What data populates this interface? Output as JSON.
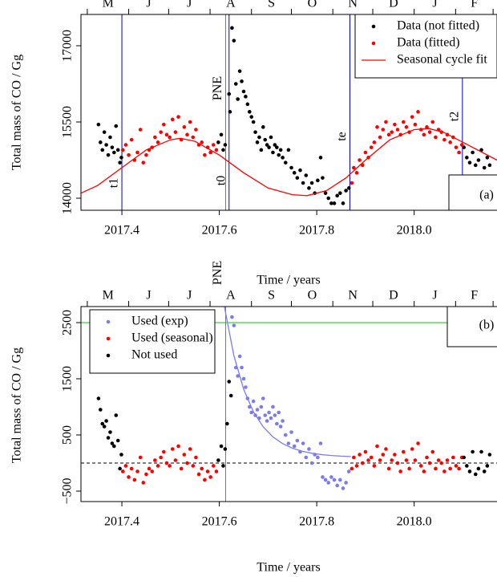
{
  "chart_data": [
    {
      "type": "scatter",
      "panel_label": "(a)",
      "xlabel": "Time / years",
      "ylabel": "Total mass of  CO  / Gg",
      "xlim": [
        2017.316,
        2018.17
      ],
      "ylim": [
        13763,
        17616
      ],
      "xticks": [
        2017.4,
        2017.6,
        2017.8,
        {
          "value": 2018,
          "label": "2018.0"
        }
      ],
      "yticks": [
        14000,
        15500,
        17000
      ],
      "month_labels": [
        "M",
        "J",
        "J",
        "A",
        "S",
        "O",
        "N",
        "D",
        "J",
        "F"
      ],
      "month_ticks": [
        2017.329,
        2017.414,
        2017.496,
        2017.581,
        2017.666,
        2017.748,
        2017.833,
        2017.915,
        2018.0,
        2018.085,
        2018.162
      ],
      "legend": "top-right",
      "vlines": [
        {
          "x": 2017.4,
          "color": "#0000cc",
          "label": "t1"
        },
        {
          "x": 2017.613,
          "color": "#00cc00",
          "label": "PNE"
        },
        {
          "x": 2017.62,
          "color": "#0000cc",
          "label": "t0"
        },
        {
          "x": 2017.868,
          "color": "#0000cc",
          "label": "te"
        },
        {
          "x": 2018.099,
          "color": "#0000cc",
          "label": "t2"
        }
      ],
      "hlines": [],
      "series": [
        {
          "name": "Data (not fitted)",
          "color": "#000000",
          "x": [
            2017.352,
            2017.356,
            2017.36,
            2017.364,
            2017.368,
            2017.372,
            2017.376,
            2017.38,
            2017.384,
            2017.388,
            2017.392,
            2017.396,
            2017.399,
            2017.598,
            2017.604,
            2017.608,
            2017.612,
            2017.62,
            2017.622,
            2017.626,
            2017.63,
            2017.634,
            2017.638,
            2017.642,
            2017.646,
            2017.65,
            2017.654,
            2017.658,
            2017.662,
            2017.666,
            2017.67,
            2017.674,
            2017.678,
            2017.682,
            2017.686,
            2017.69,
            2017.694,
            2017.698,
            2017.702,
            2017.706,
            2017.71,
            2017.714,
            2017.718,
            2017.722,
            2017.726,
            2017.73,
            2017.736,
            2017.742,
            2017.748,
            2017.754,
            2017.76,
            2017.766,
            2017.772,
            2017.778,
            2017.784,
            2017.79,
            2017.796,
            2017.802,
            2017.808,
            2017.812,
            2017.818,
            2017.824,
            2017.83,
            2017.836,
            2017.842,
            2017.848,
            2017.854,
            2017.86,
            2017.866,
            2018.102,
            2018.108,
            2018.114,
            2018.12,
            2018.126,
            2018.132,
            2018.138,
            2018.144,
            2018.15,
            2018.155
          ],
          "values": [
            15450,
            15100,
            14950,
            15300,
            15050,
            14850,
            15200,
            15000,
            14900,
            15420,
            14950,
            14700,
            14800,
            15100,
            15250,
            14950,
            15050,
            16050,
            15700,
            17350,
            17100,
            16250,
            15950,
            16500,
            16300,
            16100,
            16000,
            15850,
            15700,
            15600,
            15500,
            15300,
            15100,
            15200,
            14950,
            15400,
            15150,
            15050,
            15000,
            15200,
            14900,
            15050,
            15000,
            14850,
            14950,
            14800,
            14700,
            14950,
            14600,
            14500,
            14400,
            14550,
            14300,
            14450,
            14200,
            14300,
            14100,
            14350,
            14800,
            14400,
            14100,
            14000,
            13900,
            13900,
            14050,
            14100,
            13900,
            14150,
            14200,
            15000,
            14800,
            14700,
            14900,
            14650,
            14750,
            14950,
            14600,
            14800,
            14650
          ]
        },
        {
          "name": "Data (fitted)",
          "color": "#ff0000",
          "x": [
            2017.402,
            2017.408,
            2017.414,
            2017.42,
            2017.426,
            2017.432,
            2017.438,
            2017.444,
            2017.45,
            2017.456,
            2017.462,
            2017.468,
            2017.474,
            2017.48,
            2017.486,
            2017.492,
            2017.498,
            2017.504,
            2017.51,
            2017.516,
            2017.522,
            2017.528,
            2017.534,
            2017.54,
            2017.546,
            2017.552,
            2017.558,
            2017.564,
            2017.57,
            2017.576,
            2017.582,
            2017.588,
            2017.594,
            2017.872,
            2017.876,
            2017.882,
            2017.888,
            2017.894,
            2017.9,
            2017.906,
            2017.912,
            2017.918,
            2017.924,
            2017.93,
            2017.936,
            2017.942,
            2017.948,
            2017.954,
            2017.96,
            2017.966,
            2017.972,
            2017.978,
            2017.984,
            2017.99,
            2017.996,
            2018.002,
            2018.008,
            2018.014,
            2018.02,
            2018.026,
            2018.032,
            2018.038,
            2018.044,
            2018.05,
            2018.056,
            2018.062,
            2018.068,
            2018.074,
            2018.08,
            2018.086,
            2018.092,
            2018.098
          ],
          "values": [
            14950,
            15050,
            14850,
            15150,
            14750,
            14900,
            15350,
            14700,
            14850,
            14950,
            15000,
            15200,
            15100,
            15300,
            15450,
            15250,
            15200,
            15550,
            15300,
            15600,
            15150,
            15400,
            15250,
            15500,
            15200,
            15350,
            15050,
            15100,
            14850,
            15000,
            14900,
            15050,
            14950,
            14300,
            14600,
            14500,
            14750,
            14650,
            14900,
            14800,
            15000,
            15100,
            15400,
            15200,
            15350,
            15500,
            15250,
            15300,
            15450,
            15350,
            15250,
            15500,
            15400,
            15300,
            15600,
            15450,
            15700,
            15350,
            15250,
            15400,
            15300,
            15500,
            15200,
            15350,
            15300,
            15150,
            15250,
            15100,
            15200,
            15000,
            14900,
            15050
          ]
        },
        {
          "name": "Seasonal cycle fit",
          "color": "#ff0000",
          "line": true,
          "x": [
            2017.316,
            2017.35,
            2017.4,
            2017.45,
            2017.5,
            2017.52,
            2017.55,
            2017.6,
            2017.65,
            2017.7,
            2017.75,
            2017.78,
            2017.82,
            2017.86,
            2017.9,
            2017.95,
            2018.0,
            2018.03,
            2018.06,
            2018.1,
            2018.14,
            2018.17
          ],
          "values": [
            14100,
            14250,
            14600,
            14950,
            15150,
            15180,
            15120,
            14850,
            14500,
            14200,
            14070,
            14050,
            14150,
            14400,
            14750,
            15150,
            15350,
            15370,
            15300,
            15100,
            14900,
            14750
          ]
        }
      ]
    },
    {
      "type": "scatter",
      "panel_label": "(b)",
      "xlabel": "Time / years",
      "ylabel": "Total mass of  CO  / Gg",
      "xlim": [
        2017.316,
        2018.17
      ],
      "ylim": [
        -686,
        2786
      ],
      "xticks": [
        2017.4,
        2017.6,
        2017.8,
        {
          "value": 2018,
          "label": "2018.0"
        }
      ],
      "yticks": [
        {
          "value": -500,
          "label": "−500"
        },
        500,
        1500,
        2500
      ],
      "month_labels": [
        "M",
        "J",
        "J",
        "A",
        "S",
        "O",
        "N",
        "D",
        "J",
        "F"
      ],
      "month_ticks": [
        2017.329,
        2017.414,
        2017.496,
        2017.581,
        2017.666,
        2017.748,
        2017.833,
        2017.915,
        2018.0,
        2018.085,
        2018.162
      ],
      "legend": "top-left",
      "vlines": [
        {
          "x": 2017.613,
          "color": "#00cc00",
          "label": "PNE"
        }
      ],
      "hlines": [
        {
          "y": 2500,
          "color": "#00cc00"
        },
        {
          "y": 0,
          "color": "#000000",
          "dashed": true
        }
      ],
      "series": [
        {
          "name": "Used (exp)",
          "color": "#7b7bef",
          "x": [
            2017.626,
            2017.63,
            2017.634,
            2017.638,
            2017.642,
            2017.646,
            2017.65,
            2017.654,
            2017.658,
            2017.662,
            2017.666,
            2017.67,
            2017.674,
            2017.678,
            2017.682,
            2017.686,
            2017.69,
            2017.694,
            2017.698,
            2017.702,
            2017.706,
            2017.71,
            2017.714,
            2017.718,
            2017.722,
            2017.726,
            2017.73,
            2017.736,
            2017.742,
            2017.748,
            2017.754,
            2017.76,
            2017.766,
            2017.772,
            2017.778,
            2017.784,
            2017.79,
            2017.796,
            2017.802,
            2017.808,
            2017.812,
            2017.818,
            2017.824,
            2017.83,
            2017.836,
            2017.842,
            2017.848,
            2017.854,
            2017.86,
            2017.866
          ],
          "values": [
            2600,
            2450,
            1700,
            1550,
            1900,
            1700,
            1500,
            1350,
            1150,
            1000,
            900,
            1100,
            850,
            950,
            800,
            1000,
            1150,
            850,
            750,
            900,
            800,
            1000,
            850,
            700,
            900,
            650,
            750,
            500,
            350,
            550,
            300,
            400,
            200,
            350,
            100,
            250,
            0,
            150,
            100,
            350,
            -250,
            -300,
            -350,
            -250,
            -300,
            -400,
            -300,
            -450,
            -350,
            -150
          ]
        },
        {
          "name": "Used (seasonal)",
          "color": "#ff0000",
          "x": [
            2017.402,
            2017.408,
            2017.414,
            2017.42,
            2017.426,
            2017.432,
            2017.438,
            2017.444,
            2017.45,
            2017.456,
            2017.462,
            2017.468,
            2017.474,
            2017.48,
            2017.486,
            2017.492,
            2017.498,
            2017.504,
            2017.51,
            2017.516,
            2017.522,
            2017.528,
            2017.534,
            2017.54,
            2017.546,
            2017.552,
            2017.558,
            2017.564,
            2017.57,
            2017.576,
            2017.582,
            2017.588,
            2017.594,
            2017.872,
            2017.876,
            2017.882,
            2017.888,
            2017.894,
            2017.9,
            2017.906,
            2017.912,
            2017.918,
            2017.924,
            2017.93,
            2017.936,
            2017.942,
            2017.948,
            2017.954,
            2017.96,
            2017.966,
            2017.972,
            2017.978,
            2017.984,
            2017.99,
            2017.996,
            2018.002,
            2018.008,
            2018.014,
            2018.02,
            2018.026,
            2018.032,
            2018.038,
            2018.044,
            2018.05,
            2018.056,
            2018.062,
            2018.068,
            2018.074,
            2018.08,
            2018.086,
            2018.092,
            2018.098
          ],
          "values": [
            -150,
            -50,
            -250,
            -100,
            -300,
            -150,
            100,
            -350,
            -200,
            -100,
            -150,
            50,
            -50,
            100,
            200,
            0,
            -50,
            250,
            50,
            300,
            -100,
            150,
            0,
            250,
            -50,
            100,
            -200,
            -100,
            -300,
            -150,
            -250,
            -50,
            -150,
            -100,
            100,
            -50,
            150,
            0,
            200,
            50,
            100,
            -50,
            300,
            50,
            150,
            250,
            -100,
            50,
            150,
            0,
            -150,
            200,
            50,
            -100,
            250,
            50,
            350,
            -50,
            -150,
            100,
            0,
            200,
            -100,
            50,
            0,
            -150,
            50,
            -100,
            100,
            -50,
            -100,
            100
          ]
        },
        {
          "name": "Not used",
          "color": "#000000",
          "x": [
            2017.352,
            2017.356,
            2017.36,
            2017.364,
            2017.368,
            2017.372,
            2017.376,
            2017.38,
            2017.384,
            2017.388,
            2017.392,
            2017.396,
            2017.399,
            2017.598,
            2017.604,
            2017.608,
            2017.612,
            2017.616,
            2017.62,
            2017.624,
            2018.102,
            2018.108,
            2018.114,
            2018.12,
            2018.126,
            2018.132,
            2018.138,
            2018.144,
            2018.15,
            2018.155
          ],
          "values": [
            1150,
            950,
            700,
            650,
            750,
            450,
            550,
            350,
            300,
            850,
            400,
            -100,
            150,
            50,
            300,
            -50,
            250,
            700,
            1450,
            1200,
            100,
            -50,
            -150,
            200,
            -200,
            -100,
            200,
            -150,
            -50,
            150
          ]
        },
        {
          "color": "#7b7bef",
          "line": true,
          "x": [
            2017.61,
            2017.63,
            2017.65,
            2017.67,
            2017.69,
            2017.71,
            2017.73,
            2017.75,
            2017.77,
            2017.79,
            2017.81,
            2017.83,
            2017.85,
            2017.87
          ],
          "values": [
            2800,
            1910,
            1313,
            913,
            645,
            465,
            345,
            264,
            210,
            174,
            150,
            134,
            123,
            116
          ]
        }
      ]
    }
  ]
}
